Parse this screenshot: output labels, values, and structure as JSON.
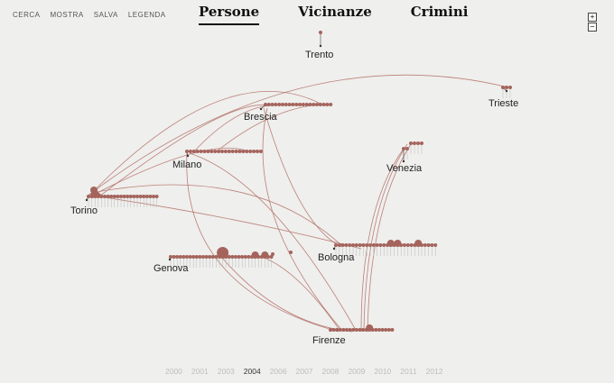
{
  "menu": [
    "CERCA",
    "MOSTRA",
    "SALVA",
    "LEGENDA"
  ],
  "tabs": [
    {
      "label": "Persone",
      "active": true
    },
    {
      "label": "Vicinanze",
      "active": false
    },
    {
      "label": "Crimini",
      "active": false
    }
  ],
  "zoom": {
    "in": "+",
    "out": "−"
  },
  "colors": {
    "node": "#a4645c",
    "link": "#b5736b",
    "stem": "#b8b8b8",
    "background": "#efefed"
  },
  "cities": [
    "Trento",
    "Trieste",
    "Brescia",
    "Milano",
    "Venezia",
    "Torino",
    "Bologna",
    "Genova",
    "Firenze"
  ],
  "timeline": {
    "years": [
      "2000",
      "2001",
      "2003",
      "2004",
      "2006",
      "2007",
      "2008",
      "2009",
      "2010",
      "2011",
      "2012"
    ],
    "active": "2004"
  }
}
